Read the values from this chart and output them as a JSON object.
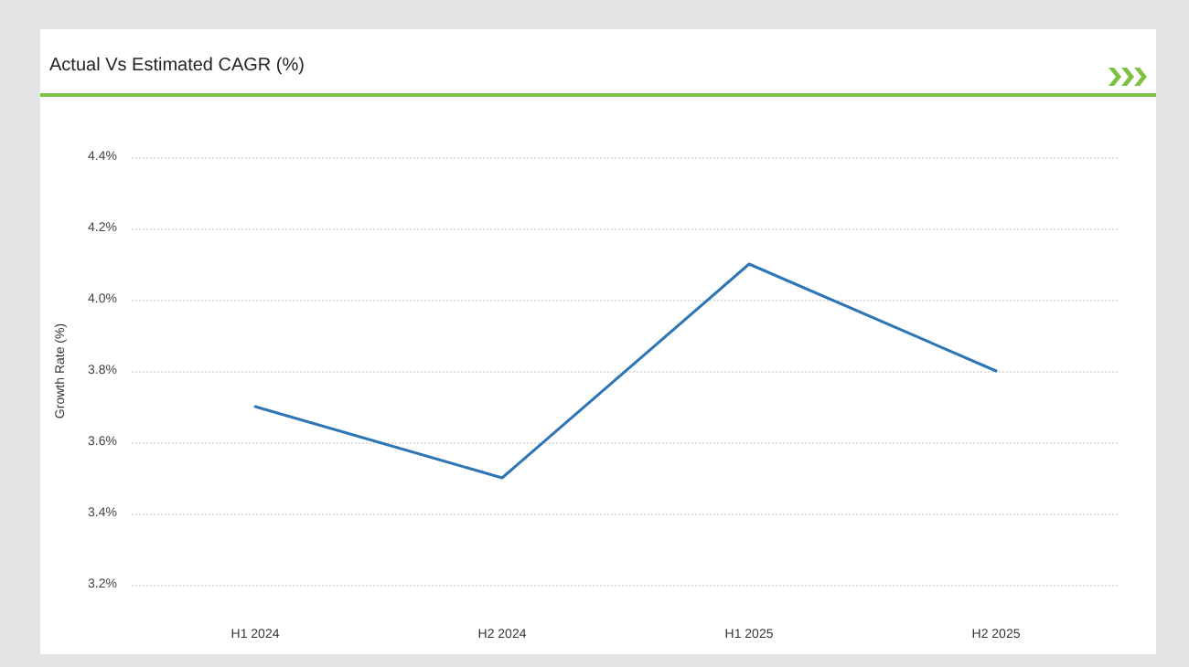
{
  "chart_data": {
    "type": "line",
    "title": "Actual Vs Estimated CAGR (%)",
    "ylabel": "Growth Rate (%)",
    "categories": [
      "H1 2024",
      "H2 2024",
      "H1 2025",
      "H2 2025"
    ],
    "series": [
      {
        "color": "#2e75b6",
        "values": [
          3.7,
          3.5,
          4.1,
          3.8
        ]
      }
    ],
    "ylim": [
      3.2,
      4.4
    ],
    "yticks": [
      {
        "value": 3.2,
        "label": "3.2%"
      },
      {
        "value": 3.4,
        "label": "3.4%"
      },
      {
        "value": 3.6,
        "label": "3.6%"
      },
      {
        "value": 3.8,
        "label": "3.8%"
      },
      {
        "value": 4.0,
        "label": "4.0%"
      },
      {
        "value": 4.2,
        "label": "4.2%"
      },
      {
        "value": 4.4,
        "label": "4.4%"
      }
    ],
    "grid": "y",
    "marker": "none",
    "line_style": "solid"
  }
}
